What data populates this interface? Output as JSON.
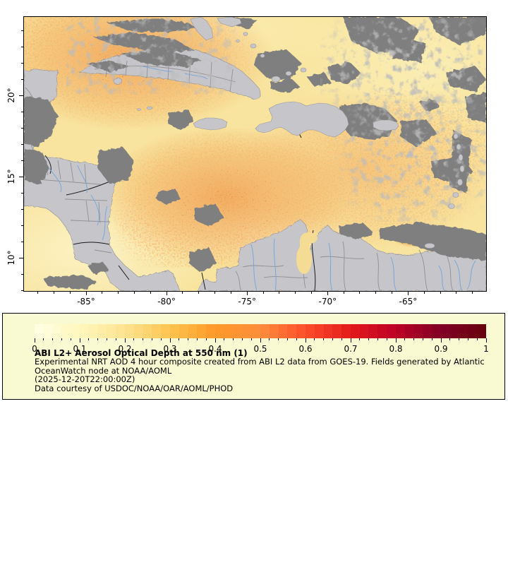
{
  "figure": {
    "background": "#FFFFFF",
    "description_kind": "satellite aerosol optical depth map with colorbar legend"
  },
  "legend": {
    "title": "ABI L2+ Aerosol Optical Depth at 550 nm (1)",
    "lines": [
      "Experimental NRT AOD 4 hour composite created from ABI L2 data from GOES-19. Fields generated by Atlantic",
      "OceanWatch node at NOAA/AOML",
      "(2025-12-20T22:00:00Z)",
      "Data courtesy of USDOC/NOAA/OAR/AOML/PHOD"
    ],
    "background": "#FAFAD2",
    "border_color": "#000000"
  },
  "chart_data": {
    "type": "heatmap",
    "title": "ABI L2+ Aerosol Optical Depth at 550 nm (1)",
    "variable": "Aerosol Optical Depth at 550 nm",
    "region": "Caribbean / Gulf of Mexico / northern South America",
    "x": {
      "range": [
        -88.9,
        -60.2
      ],
      "major_ticks": [
        {
          "label": "-85°",
          "value": -85
        },
        {
          "label": "-80°",
          "value": -80
        },
        {
          "label": "-75°",
          "value": -75
        },
        {
          "label": "-70°",
          "value": -70
        },
        {
          "label": "-65°",
          "value": -65
        }
      ],
      "minor_step": 1
    },
    "y": {
      "range": [
        8.0,
        24.9
      ],
      "major_ticks": [
        {
          "label": "20°",
          "value": 20
        },
        {
          "label": "15°",
          "value": 15
        },
        {
          "label": "10°",
          "value": 10
        }
      ],
      "minor_step": 1
    },
    "colorbar": {
      "range": [
        0,
        1
      ],
      "major_ticks": [
        {
          "label": "0",
          "value": 0
        },
        {
          "label": "0.1",
          "value": 0.1
        },
        {
          "label": "0.2",
          "value": 0.2
        },
        {
          "label": "0.3",
          "value": 0.3
        },
        {
          "label": "0.4",
          "value": 0.4
        },
        {
          "label": "0.5",
          "value": 0.5
        },
        {
          "label": "0.6",
          "value": 0.6
        },
        {
          "label": "0.7",
          "value": 0.7
        },
        {
          "label": "0.8",
          "value": 0.8
        },
        {
          "label": "0.9",
          "value": 0.9
        },
        {
          "label": "1",
          "value": 1
        }
      ],
      "minor_step": 0.02,
      "cells": 50,
      "palette": [
        "#FFFFE5",
        "#FFF7BC",
        "#FEE391",
        "#FEC44F",
        "#FE9929",
        "#FD8D3C",
        "#FC4E2A",
        "#E31A1C",
        "#BD0026",
        "#800026",
        "#67000D"
      ]
    },
    "map_colors": {
      "ocean_low_aod": "#F8E49E",
      "aod_plume_orange": "#EE9A4A",
      "aod_hotspot_red": "#C8301C",
      "land": "#C6C6CA",
      "cloud_no_data": "#7F7F7F",
      "river": "#7AA7D8",
      "country_border": "#1A1A1A",
      "state_border": "#8F8F95"
    }
  }
}
